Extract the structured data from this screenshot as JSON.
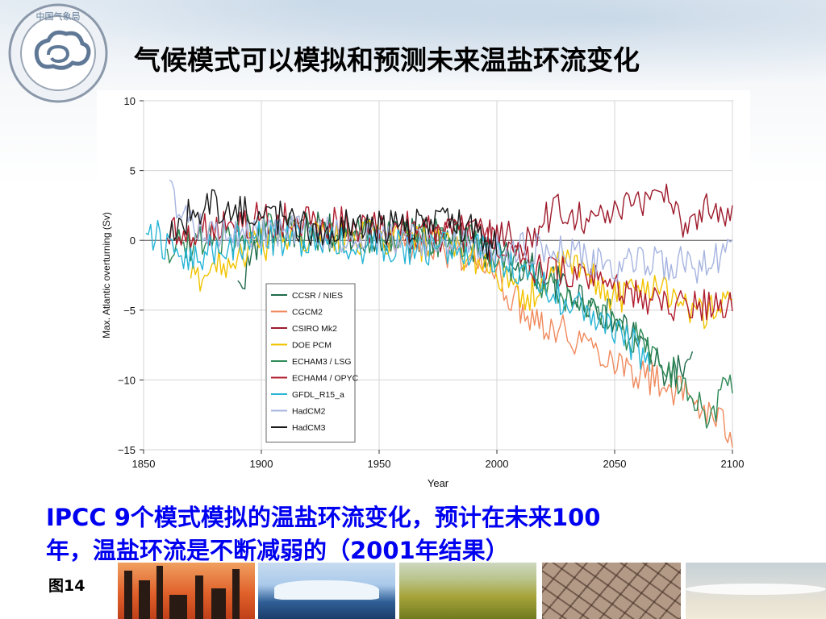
{
  "slide": {
    "title": "气候模式可以模拟和预测未来温盐环流变化",
    "caption_line1": "IPCC 9个模式模拟的温盐环流变化，预计在未来100",
    "caption_line2": "年，温盐环流是不断减弱的（2001年结果）",
    "figure_number": "图14",
    "logo_icon": "china-meteorological-administration-logo"
  },
  "chart_data": {
    "type": "line",
    "title": "",
    "xlabel": "Year",
    "ylabel": "Max. Atlantic overturning (Sv)",
    "xlim": [
      1850,
      2100
    ],
    "ylim": [
      -15,
      10
    ],
    "xticks": [
      1850,
      1900,
      1950,
      2000,
      2050,
      2100
    ],
    "yticks": [
      -15,
      -10,
      -5,
      0,
      5,
      10
    ],
    "yticklabels": [
      "−15",
      "−10",
      "−5",
      "0",
      "5",
      "10"
    ],
    "zero_line": true,
    "grid": true,
    "legend": "lower-left",
    "series": [
      {
        "name": "CCSR / NIES",
        "color": "#1f6b4a",
        "start": 1890,
        "end": 2083,
        "x": [
          1890,
          1900,
          1920,
          1950,
          1980,
          2000,
          2020,
          2040,
          2060,
          2070,
          2083
        ],
        "y": [
          -3.5,
          0.5,
          0.8,
          0.3,
          0.3,
          -1.0,
          -2.5,
          -4.5,
          -7.0,
          -9.5,
          -9.2
        ]
      },
      {
        "name": "CGCM2",
        "color": "#f08a5d",
        "start": 1950,
        "end": 2100,
        "x": [
          1950,
          1970,
          1990,
          2000,
          2010,
          2020,
          2040,
          2060,
          2080,
          2090,
          2100
        ],
        "y": [
          0.0,
          -0.5,
          -1.2,
          -2.5,
          -4.8,
          -5.8,
          -7.5,
          -9.5,
          -11.0,
          -12.5,
          -13.8
        ]
      },
      {
        "name": "CSIRO Mk2",
        "color": "#9e1b2c",
        "start": 1961,
        "end": 2100,
        "x": [
          1961,
          1980,
          2000,
          2015,
          2025,
          2040,
          2060,
          2070,
          2080,
          2090,
          2100
        ],
        "y": [
          -0.3,
          0.3,
          0.3,
          0.0,
          2.5,
          1.5,
          2.5,
          4.0,
          1.0,
          2.5,
          2.0
        ]
      },
      {
        "name": "DOE PCM",
        "color": "#f2c300",
        "start": 1870,
        "end": 2100,
        "x": [
          1870,
          1890,
          1910,
          1950,
          1980,
          2000,
          2010,
          2030,
          2050,
          2070,
          2085,
          2100
        ],
        "y": [
          -2.8,
          -1.0,
          0.3,
          0.2,
          -0.5,
          -2.0,
          -4.5,
          -1.5,
          -4.0,
          -3.0,
          -5.5,
          -4.0
        ]
      },
      {
        "name": "ECHAM3 / LSG",
        "color": "#2e8b57",
        "start": 1860,
        "end": 2100,
        "x": [
          1860,
          1900,
          1950,
          1990,
          2010,
          2030,
          2050,
          2070,
          2090,
          2100
        ],
        "y": [
          -0.5,
          0.8,
          0.2,
          0.0,
          -2.0,
          -4.5,
          -6.0,
          -8.5,
          -12.5,
          -10.0
        ]
      },
      {
        "name": "ECHAM4 / OPYC",
        "color": "#b01c2e",
        "start": 1860,
        "end": 2100,
        "x": [
          1860,
          1900,
          1950,
          1990,
          2010,
          2030,
          2050,
          2070,
          2090,
          2100
        ],
        "y": [
          0.5,
          1.5,
          1.0,
          0.5,
          -1.5,
          -2.5,
          -3.5,
          -4.5,
          -4.5,
          -5.0
        ]
      },
      {
        "name": "GFDL_R15_a",
        "color": "#27b5d6",
        "start": 1851,
        "end": 2065,
        "x": [
          1851,
          1860,
          1870,
          1880,
          1900,
          1950,
          1990,
          2010,
          2030,
          2050,
          2065
        ],
        "y": [
          1.0,
          -0.5,
          -1.5,
          -0.5,
          0.2,
          -0.5,
          -0.5,
          -2.0,
          -4.5,
          -6.5,
          -8.5
        ]
      },
      {
        "name": "HadCM2",
        "color": "#a6b4e0",
        "start": 1861,
        "end": 2100,
        "x": [
          1861,
          1865,
          1880,
          1920,
          1960,
          2000,
          2030,
          2050,
          2070,
          2090,
          2100
        ],
        "y": [
          5.0,
          2.0,
          0.5,
          0.5,
          0.0,
          -0.5,
          -1.0,
          -2.0,
          -1.5,
          -2.0,
          -0.3
        ]
      },
      {
        "name": "HadCM3",
        "color": "#1a1a1a",
        "start": 1861,
        "end": 2000,
        "x": [
          1861,
          1880,
          1900,
          1920,
          1940,
          1960,
          1978,
          1990,
          2000
        ],
        "y": [
          1.0,
          2.5,
          2.0,
          0.8,
          1.0,
          0.8,
          2.0,
          0.5,
          -0.5
        ]
      }
    ]
  }
}
